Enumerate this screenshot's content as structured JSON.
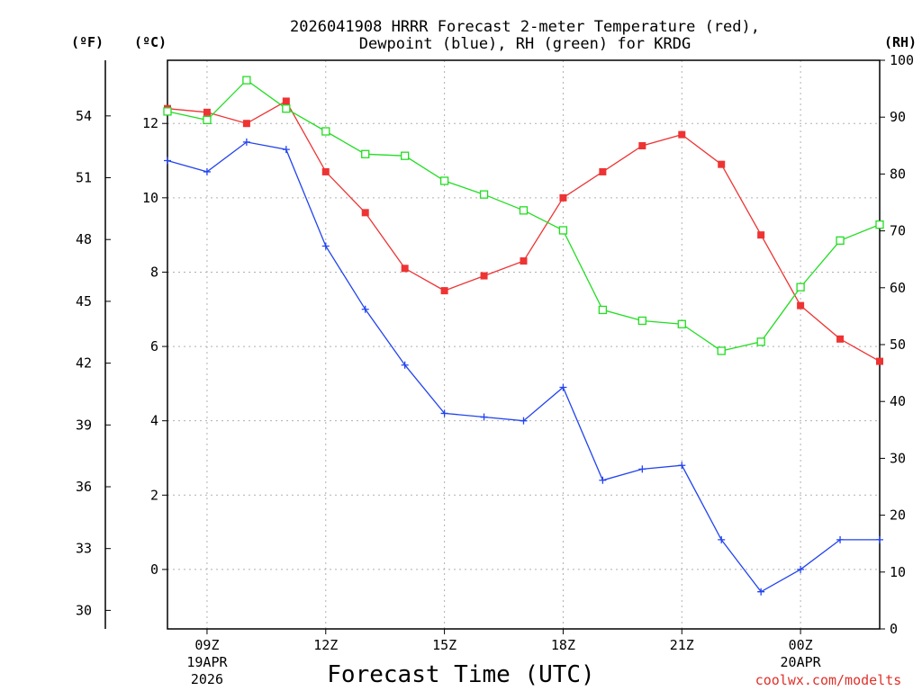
{
  "chart_data": {
    "type": "line",
    "title_line1": "2026041908 HRRR Forecast 2-meter Temperature (red),",
    "title_line2": "Dewpoint (blue), RH (green) for KRDG",
    "xlabel": "Forecast Time (UTC)",
    "credit": "coolwx.com/modelts",
    "units": {
      "fahrenheit": "(ºF)",
      "celsius": "(ºC)",
      "rh": "(RH)"
    },
    "x_hours": [
      8,
      9,
      10,
      11,
      12,
      13,
      14,
      15,
      16,
      17,
      18,
      19,
      20,
      21,
      22,
      23,
      24,
      25,
      26
    ],
    "xlim": [
      8,
      26
    ],
    "x_ticks": [
      {
        "hour": 9,
        "label": "09Z",
        "sub1": "19APR",
        "sub2": "2026"
      },
      {
        "hour": 12,
        "label": "12Z",
        "sub1": "",
        "sub2": ""
      },
      {
        "hour": 15,
        "label": "15Z",
        "sub1": "",
        "sub2": ""
      },
      {
        "hour": 18,
        "label": "18Z",
        "sub1": "",
        "sub2": ""
      },
      {
        "hour": 21,
        "label": "21Z",
        "sub1": "",
        "sub2": ""
      },
      {
        "hour": 24,
        "label": "00Z",
        "sub1": "20APR",
        "sub2": ""
      }
    ],
    "celsius_axis": {
      "ylim": [
        -1.6,
        13.7
      ],
      "ticks": [
        0,
        2,
        4,
        6,
        8,
        10,
        12
      ]
    },
    "fahrenheit_axis": {
      "ylim": [
        29.1,
        56.7
      ],
      "ticks": [
        30,
        33,
        36,
        39,
        42,
        45,
        48,
        51,
        54
      ]
    },
    "rh_axis": {
      "ylim": [
        0,
        100
      ],
      "ticks": [
        0,
        10,
        20,
        30,
        40,
        50,
        60,
        70,
        80,
        90,
        100
      ]
    },
    "series": [
      {
        "name": "Temperature",
        "color": "#ee3333",
        "marker": "filled-square",
        "axis": "celsius",
        "values": [
          12.4,
          12.3,
          12.0,
          12.6,
          10.7,
          9.6,
          8.1,
          7.5,
          7.9,
          8.3,
          10.0,
          10.7,
          11.4,
          11.7,
          10.9,
          9.0,
          7.1,
          6.2,
          5.6
        ]
      },
      {
        "name": "Dewpoint",
        "color": "#2244ee",
        "marker": "plus",
        "axis": "celsius",
        "values": [
          11.0,
          10.7,
          11.5,
          11.3,
          8.7,
          7.0,
          5.5,
          4.2,
          4.1,
          4.0,
          4.9,
          2.4,
          2.7,
          2.8,
          0.8,
          -0.6,
          -0.0,
          0.8,
          0.8
        ]
      },
      {
        "name": "RH",
        "color": "#22dd22",
        "marker": "open-square",
        "axis": "rh",
        "values": [
          91.0,
          89.5,
          96.5,
          91.5,
          87.5,
          83.5,
          83.2,
          78.8,
          76.4,
          73.6,
          70.1,
          56.1,
          54.2,
          53.6,
          48.9,
          50.5,
          60.1,
          68.3,
          71.1
        ]
      }
    ]
  }
}
